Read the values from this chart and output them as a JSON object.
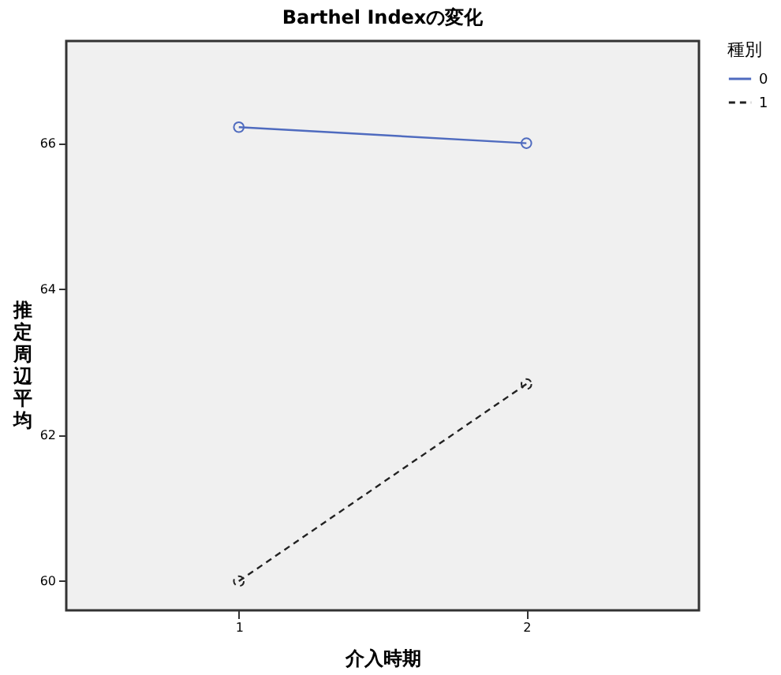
{
  "chart_data": {
    "type": "line",
    "title": "Barthel Indexの変化",
    "xlabel": "介入時期",
    "ylabel": "推定周辺平均",
    "legend_title": "種別",
    "categories": [
      "1",
      "2"
    ],
    "series": [
      {
        "name": "0",
        "color": "#4f6bbf",
        "line_style": "solid",
        "values": [
          66.22,
          66.0
        ]
      },
      {
        "name": "1",
        "color": "#222222",
        "line_style": "dashed",
        "values": [
          60.0,
          62.7
        ]
      }
    ],
    "ylim": [
      59.6,
      67.4
    ],
    "yticks": [
      60,
      62,
      64,
      66
    ],
    "grid": false,
    "legend": "top right",
    "marker": "circle"
  }
}
